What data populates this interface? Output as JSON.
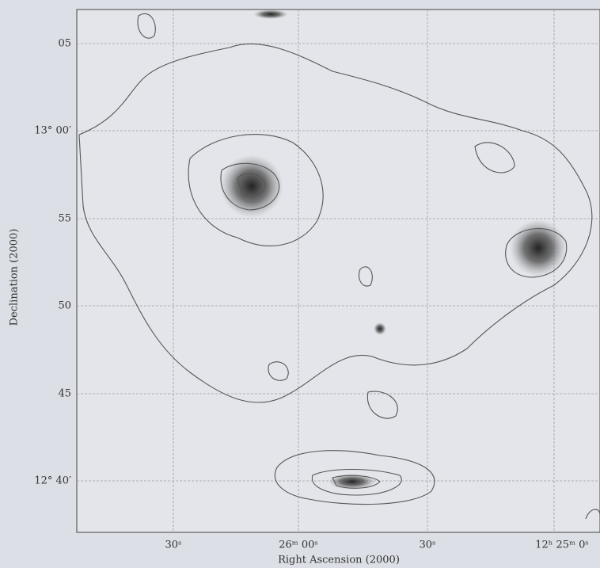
{
  "x_axis": {
    "label": "Right Ascension (2000)",
    "ticks": [
      "30ˢ",
      "26ᵐ 00ˢ",
      "30ˢ",
      "12ʰ 25ᵐ 0ˢ"
    ]
  },
  "y_axis": {
    "label": "Declination (2000)",
    "ticks": [
      "05",
      "13° 00′",
      "55",
      "50",
      "45",
      "12° 40′"
    ]
  }
}
